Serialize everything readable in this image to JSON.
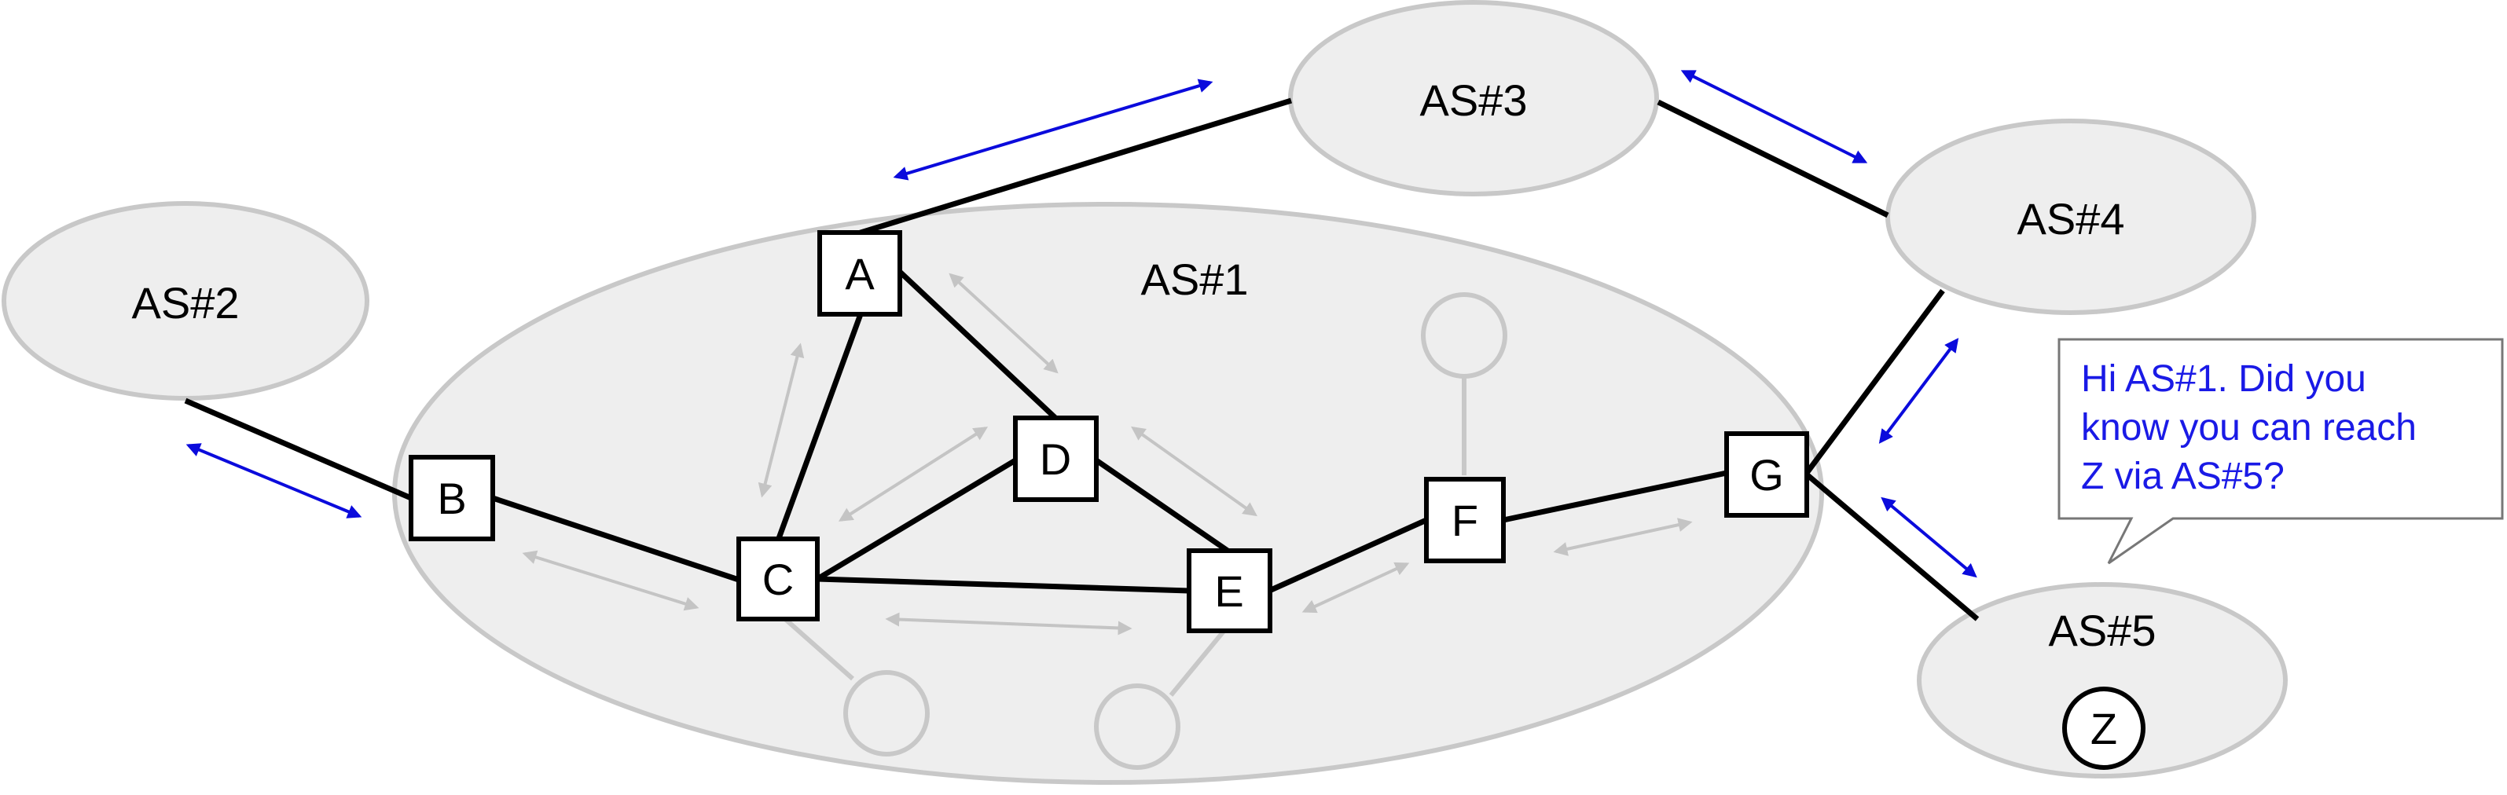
{
  "autonomous_systems": {
    "as1": {
      "label": "AS#1"
    },
    "as2": {
      "label": "AS#2"
    },
    "as3": {
      "label": "AS#3"
    },
    "as4": {
      "label": "AS#4"
    },
    "as5": {
      "label": "AS#5"
    }
  },
  "routers": {
    "a": {
      "label": "A"
    },
    "b": {
      "label": "B"
    },
    "c": {
      "label": "C"
    },
    "d": {
      "label": "D"
    },
    "e": {
      "label": "E"
    },
    "f": {
      "label": "F"
    },
    "g": {
      "label": "G"
    }
  },
  "destination": {
    "label": "Z"
  },
  "speech_bubble": {
    "lines": [
      "Hi AS#1. Did you",
      "know you can reach",
      "Z via AS#5?"
    ]
  },
  "colors": {
    "as_fill": "#eeeeee",
    "as_border": "#c8c8c8",
    "link": "#000000",
    "external_arrow": "#0b0bdc",
    "internal_arrow": "#c4c4c4",
    "bubble_text": "#1a1ae6"
  }
}
